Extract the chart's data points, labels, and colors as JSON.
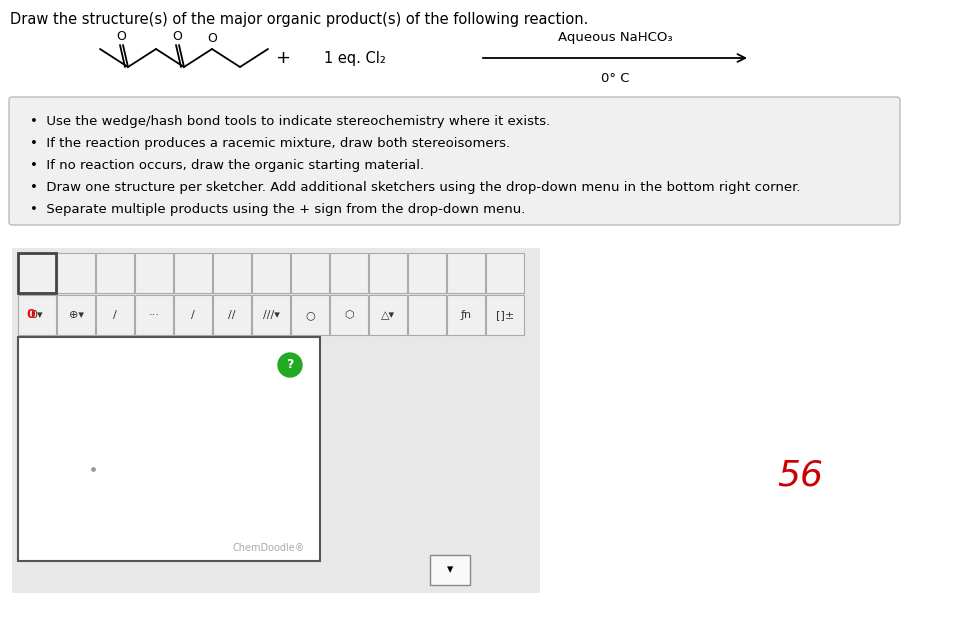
{
  "title": "Draw the structure(s) of the major organic product(s) of the following reaction.",
  "title_fontsize": 10.5,
  "title_color": "#000000",
  "background_color": "#ffffff",
  "reaction_conditions_line1": "Aqueous NaHCO₃",
  "reaction_conditions_line2": "0° C",
  "reagent_text": "1 eq. Cl₂",
  "bullet_points": [
    "Use the wedge/hash bond tools to indicate stereochemistry where it exists.",
    "If the reaction produces a racemic mixture, draw both stereoisomers.",
    "If no reaction occurs, draw the organic starting material.",
    "Draw one structure per sketcher. Add additional sketchers using the drop-down menu in the bottom right corner.",
    "Separate multiple products using the + sign from the drop-down menu."
  ],
  "bullet_box_bg": "#f0f0f0",
  "annotation_text": "56",
  "annotation_color": "#cc0000",
  "annotation_fontsize": 26,
  "chemdoodle_label": "ChemDoodle®"
}
